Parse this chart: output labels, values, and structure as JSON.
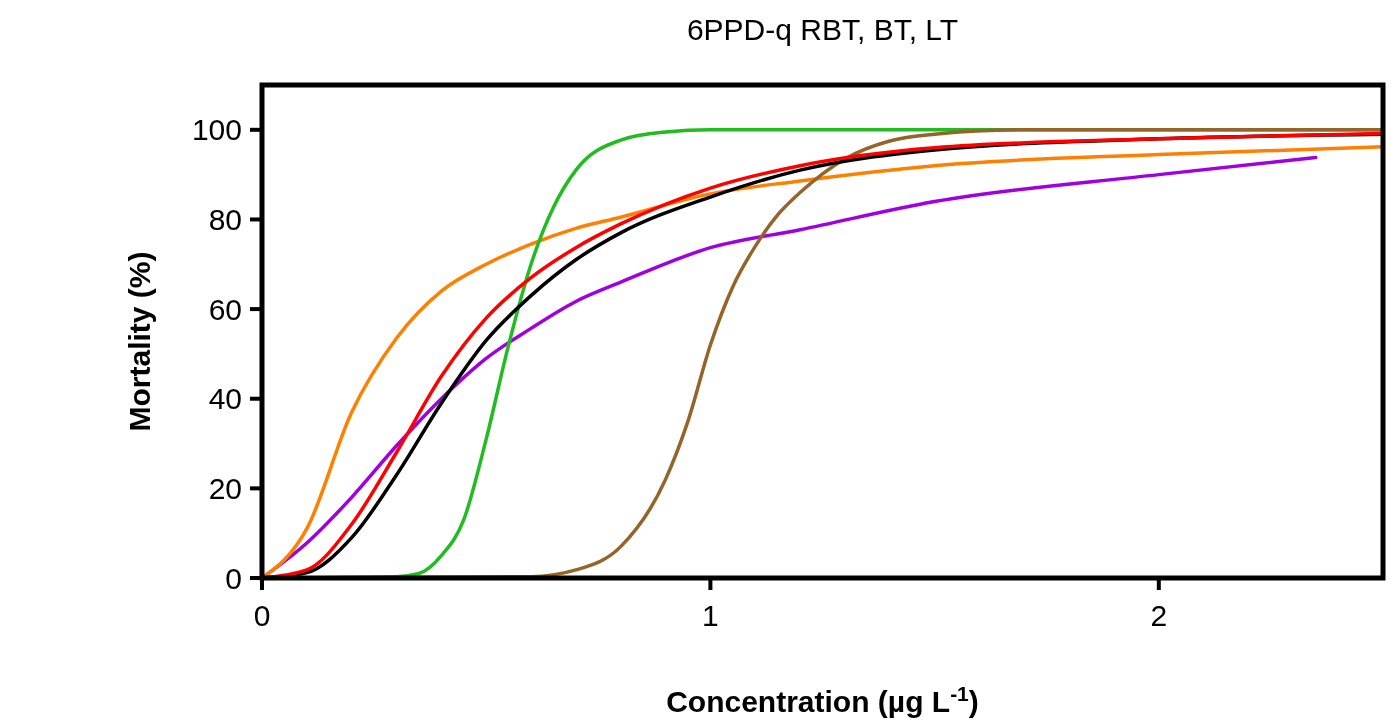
{
  "chart_data": {
    "type": "line",
    "title": "6PPD-q RBT, BT, LT",
    "xlabel": "Concentration (µg L$^{-1}$)",
    "ylabel": "Mortality (%)",
    "xlim": [
      0,
      2.5
    ],
    "xticks": [
      0,
      1,
      2
    ],
    "ylim": [
      0,
      110
    ],
    "yticks": [
      0,
      20,
      40,
      60,
      80,
      100
    ],
    "grid": false,
    "marker": "none",
    "line_style": "solid",
    "series": [
      {
        "color": "#a000e0",
        "x": [
          0,
          0.1,
          0.2,
          0.3,
          0.4,
          0.5,
          0.6,
          0.7,
          0.8,
          1.0,
          1.2,
          1.5,
          2.0,
          2.35
        ],
        "values": [
          0,
          7.8,
          18,
          29.5,
          40,
          49,
          55.7,
          61.7,
          66,
          73.7,
          77.7,
          84,
          90,
          93.8
        ]
      },
      {
        "color": "#ff8000",
        "x": [
          0,
          0.1,
          0.2,
          0.3,
          0.4,
          0.5,
          0.6,
          0.7,
          0.8,
          1.0,
          1.2,
          1.5,
          2.0,
          2.5
        ],
        "values": [
          0,
          11,
          37,
          53.5,
          64,
          70,
          74.5,
          78,
          80.5,
          85.7,
          88.6,
          92,
          94.5,
          96.2
        ]
      },
      {
        "color": "#22bb22",
        "x": [
          0,
          0.3,
          0.35,
          0.4,
          0.45,
          0.5,
          0.55,
          0.6,
          0.65,
          0.7,
          0.8,
          0.9,
          1.0,
          2.5
        ],
        "values": [
          0,
          0.3,
          1,
          5,
          13,
          31,
          52,
          70,
          82.7,
          91,
          97.7,
          99.5,
          100,
          100
        ]
      },
      {
        "color": "#94642a",
        "x": [
          0,
          0.6,
          0.7,
          0.8,
          0.9,
          0.95,
          1.0,
          1.05,
          1.1,
          1.15,
          1.2,
          1.3,
          1.4,
          1.5,
          1.7,
          2.5
        ],
        "values": [
          0,
          0.3,
          1.8,
          7,
          22,
          35,
          52,
          65,
          74,
          81,
          86,
          93.5,
          97.5,
          99,
          100,
          100
        ]
      },
      {
        "color": "#000000",
        "x": [
          0,
          0.1,
          0.2,
          0.3,
          0.4,
          0.5,
          0.6,
          0.7,
          0.8,
          1.0,
          1.2,
          1.5,
          2.0,
          2.5
        ],
        "values": [
          0,
          1.2,
          9,
          23,
          39,
          53,
          63,
          71,
          77,
          85,
          91,
          95.5,
          98,
          99
        ]
      },
      {
        "color": "#ff0000",
        "x": [
          0,
          0.1,
          0.2,
          0.3,
          0.4,
          0.5,
          0.6,
          0.7,
          0.8,
          1.0,
          1.2,
          1.5,
          2.0,
          2.5
        ],
        "values": [
          0,
          1.8,
          12,
          28,
          45,
          58,
          67,
          73.7,
          79,
          87,
          92,
          96,
          98,
          99.2
        ]
      }
    ]
  }
}
